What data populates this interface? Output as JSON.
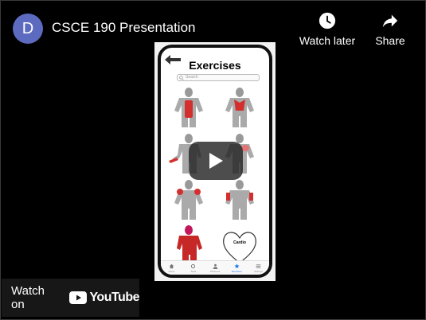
{
  "header": {
    "avatar_letter": "D",
    "title": "CSCE 190 Presentation",
    "watch_later_label": "Watch later",
    "share_label": "Share"
  },
  "app_screen": {
    "title": "Exercises",
    "search_placeholder": "Search",
    "cardio_label": "Cardio",
    "tabs": [
      {
        "icon": "home-icon",
        "label": "Home"
      },
      {
        "icon": "gear-icon",
        "label": "Tools"
      },
      {
        "icon": "person-icon",
        "label": "Workouts"
      },
      {
        "icon": "star-icon",
        "label": "Exercises",
        "active": true
      },
      {
        "icon": "menu-icon",
        "label": "Settings"
      }
    ]
  },
  "footer": {
    "watch_on_label": "Watch on",
    "youtube_wordmark": "YouTube"
  },
  "colors": {
    "avatar": "#5c6bc0",
    "muscle_highlight": "#d32f2f",
    "youtube_red": "#ff0000"
  }
}
